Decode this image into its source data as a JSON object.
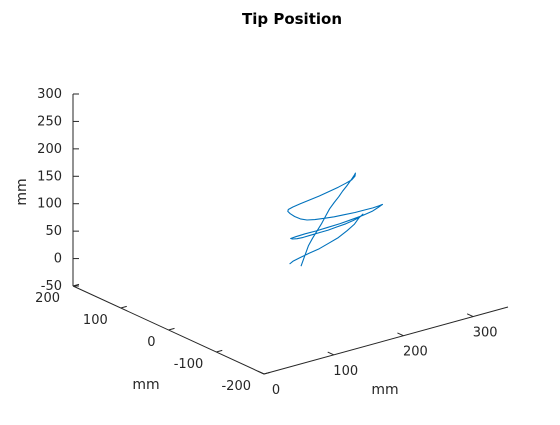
{
  "chart_data": {
    "type": "line",
    "projection": "3d",
    "title": "Tip Position",
    "xlabel": "mm",
    "ylabel": "mm",
    "zlabel": "mm",
    "xlim": [
      0,
      350
    ],
    "ylim": [
      -200,
      200
    ],
    "zlim": [
      -50,
      300
    ],
    "x_ticks": [
      "0",
      "100",
      "200",
      "300"
    ],
    "y_ticks": [
      "-200",
      "-100",
      "0",
      "100",
      "200"
    ],
    "z_ticks": [
      "-50",
      "0",
      "50",
      "100",
      "150",
      "200",
      "250",
      "300"
    ],
    "grid": false,
    "series_color": "#0072BD",
    "series": [
      {
        "x": [
          190,
          195,
          200,
          205,
          212,
          220,
          228,
          235,
          242,
          250,
          258,
          265,
          272,
          278,
          283,
          287,
          290,
          288,
          282,
          272,
          260,
          245,
          230,
          215,
          200,
          188,
          180,
          178,
          180,
          185,
          192,
          200,
          210,
          222,
          235,
          248,
          262,
          275,
          285,
          292,
          296,
          292,
          284,
          272,
          258,
          242,
          226,
          210,
          196,
          184,
          178,
          182,
          190,
          200,
          212,
          226,
          240,
          254,
          268,
          280,
          289,
          295,
          298,
          294,
          286,
          274,
          260,
          245,
          230,
          214,
          200,
          188,
          182
        ],
        "y": [
          0,
          2,
          4,
          6,
          8,
          10,
          12,
          14,
          16,
          18,
          20,
          22,
          24,
          26,
          28,
          30,
          32,
          30,
          28,
          26,
          24,
          22,
          20,
          18,
          16,
          14,
          12,
          10,
          8,
          6,
          4,
          2,
          0,
          -2,
          -4,
          -6,
          -8,
          -10,
          -12,
          -14,
          -16,
          -14,
          -12,
          -10,
          -8,
          -6,
          -4,
          -2,
          0,
          2,
          4,
          6,
          8,
          10,
          12,
          14,
          16,
          18,
          20,
          22,
          24,
          26,
          28,
          30,
          28,
          26,
          24,
          22,
          20,
          18,
          16,
          14,
          12
        ],
        "z": [
          0,
          10,
          20,
          30,
          40,
          50,
          60,
          70,
          80,
          88,
          95,
          102,
          108,
          113,
          117,
          120,
          122,
          118,
          114,
          112,
          110,
          108,
          106,
          105,
          104,
          103,
          102,
          100,
          96,
          90,
          84,
          80,
          78,
          77,
          76,
          76,
          76,
          77,
          78,
          80,
          82,
          78,
          72,
          68,
          65,
          62,
          60,
          58,
          57,
          55,
          53,
          50,
          47,
          45,
          44,
          43,
          42,
          42,
          42,
          43,
          44,
          45,
          46,
          40,
          32,
          25,
          18,
          14,
          10,
          8,
          6,
          4,
          2
        ]
      }
    ]
  }
}
